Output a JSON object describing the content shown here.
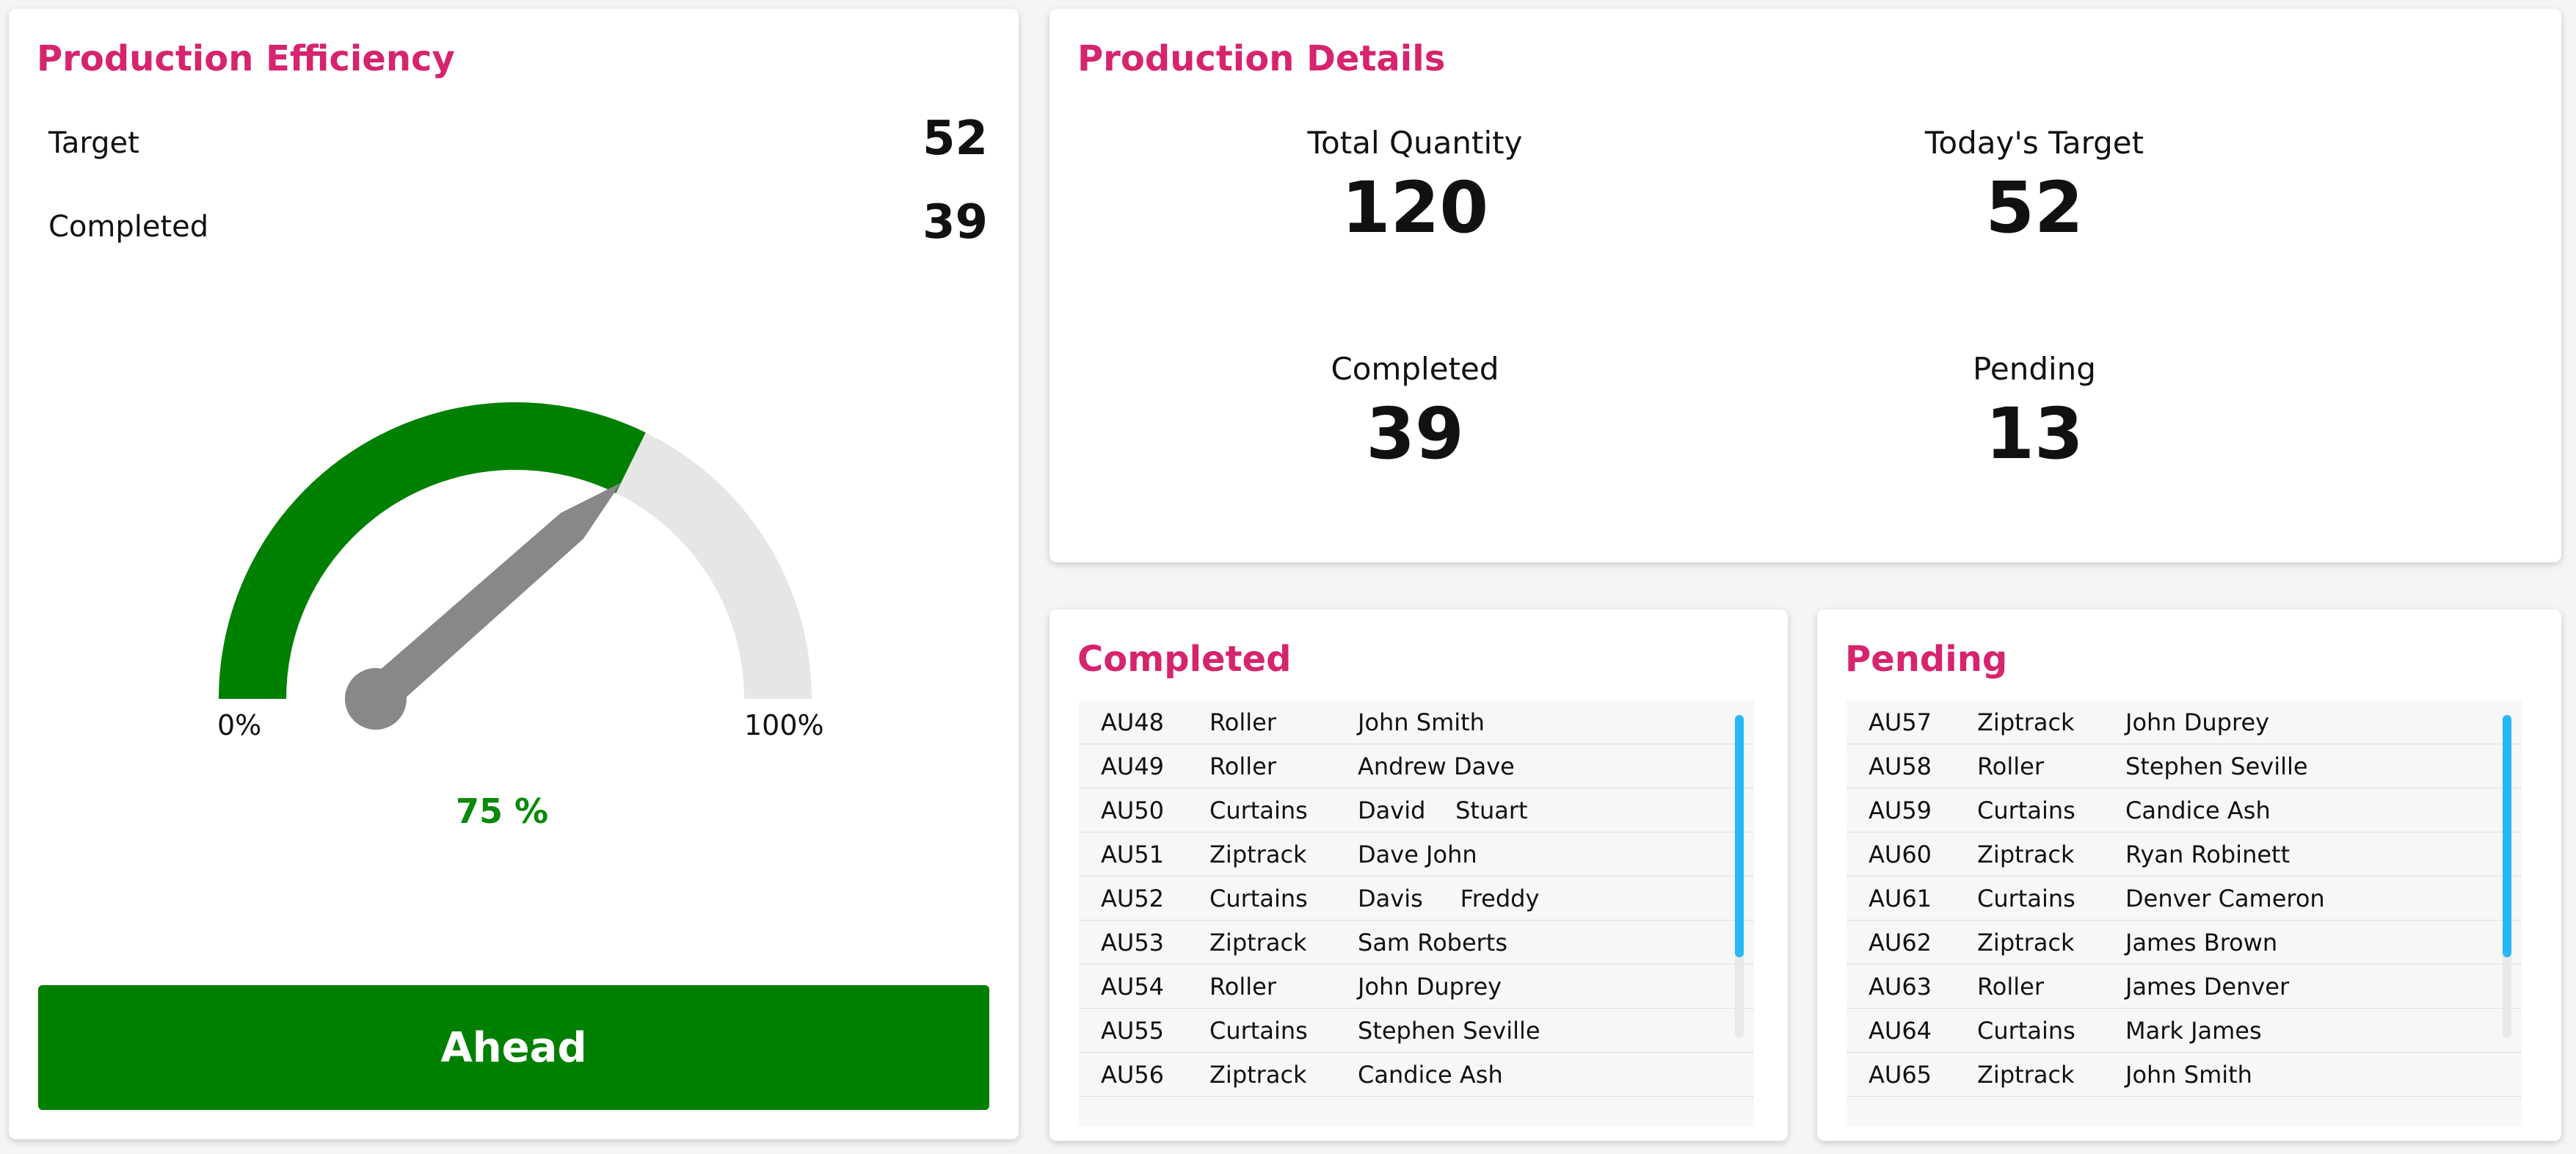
{
  "efficiency": {
    "title": "Production Efficiency",
    "target_label": "Target",
    "target_value": "52",
    "completed_label": "Completed",
    "completed_value": "39",
    "gauge": {
      "value_fraction": 0.75,
      "min_label": "0%",
      "max_label": "100%",
      "fill_color": "#008000",
      "track_color": "#e6e6e6",
      "needle_color": "#888888"
    },
    "percent_text": "75 %",
    "status_button": "Ahead"
  },
  "details": {
    "title": "Production Details",
    "total_quantity_label": "Total Quantity",
    "total_quantity_value": "120",
    "todays_target_label": "Today's Target",
    "todays_target_value": "52",
    "completed_label": "Completed",
    "completed_value": "39",
    "pending_label": "Pending",
    "pending_value": "13"
  },
  "completed": {
    "title": "Completed",
    "rows": [
      {
        "id": "AU48",
        "type": "Roller",
        "name": "John Smith"
      },
      {
        "id": "AU49",
        "type": "Roller",
        "name": "Andrew Dave"
      },
      {
        "id": "AU50",
        "type": "Curtains",
        "name": "David    Stuart"
      },
      {
        "id": "AU51",
        "type": "Ziptrack",
        "name": "Dave John"
      },
      {
        "id": "AU52",
        "type": "Curtains",
        "name": "Davis     Freddy"
      },
      {
        "id": "AU53",
        "type": "Ziptrack",
        "name": "Sam Roberts"
      },
      {
        "id": "AU54",
        "type": "Roller",
        "name": "John Duprey"
      },
      {
        "id": "AU55",
        "type": "Curtains",
        "name": "Stephen Seville"
      },
      {
        "id": "AU56",
        "type": "Ziptrack",
        "name": "Candice Ash"
      }
    ]
  },
  "pending": {
    "title": "Pending",
    "rows": [
      {
        "id": "AU57",
        "type": "Ziptrack",
        "name": "John Duprey"
      },
      {
        "id": "AU58",
        "type": "Roller",
        "name": "Stephen Seville"
      },
      {
        "id": "AU59",
        "type": "Curtains",
        "name": "Candice Ash"
      },
      {
        "id": "AU60",
        "type": "Ziptrack",
        "name": "Ryan Robinett"
      },
      {
        "id": "AU61",
        "type": "Curtains",
        "name": "Denver Cameron"
      },
      {
        "id": "AU62",
        "type": "Ziptrack",
        "name": "James Brown"
      },
      {
        "id": "AU63",
        "type": "Roller",
        "name": "James Denver"
      },
      {
        "id": "AU64",
        "type": "Curtains",
        "name": "Mark James"
      },
      {
        "id": "AU65",
        "type": "Ziptrack",
        "name": "John Smith"
      }
    ]
  }
}
